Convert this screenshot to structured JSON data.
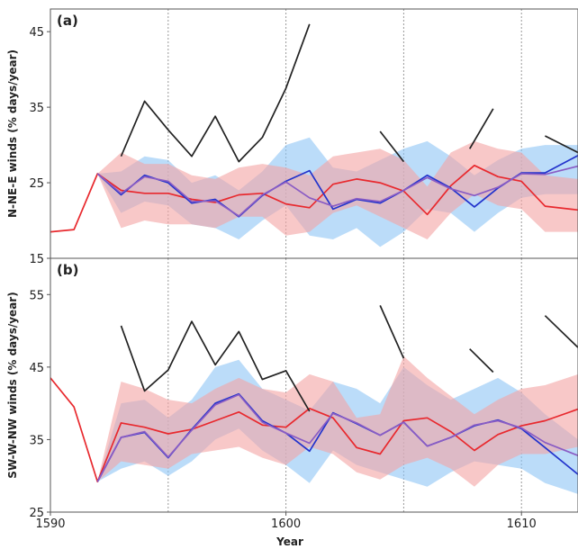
{
  "chart_data": [
    {
      "type": "line",
      "panel_label": "(a)",
      "xlabel": "",
      "ylabel": "N-NE-E winds (% days/year)",
      "xlim": [
        1590,
        1612.4
      ],
      "ylim": [
        15,
        48
      ],
      "yticks": [
        15,
        25,
        35,
        45
      ],
      "grid": "vertical dashed at 1595, 1600, 1605, 1610",
      "series": [
        {
          "color": "#222222",
          "style": "line",
          "segments": [
            [
              [
                1593,
                28.5
              ],
              [
                1594,
                35.8
              ],
              [
                1595,
                32
              ],
              [
                1596,
                28.5
              ],
              [
                1597,
                33.8
              ],
              [
                1598,
                27.8
              ],
              [
                1599,
                31
              ],
              [
                1600,
                37.5
              ],
              [
                1601,
                46
              ]
            ],
            [
              [
                1604,
                31.8
              ],
              [
                1605,
                27.8
              ]
            ],
            [
              [
                1607.8,
                29.5
              ],
              [
                1608.8,
                34.8
              ]
            ],
            [
              [
                1611,
                31.2
              ],
              [
                1612.4,
                29
              ]
            ]
          ]
        },
        {
          "color": "#2233cc",
          "style": "line",
          "x": [
            1592,
            1593,
            1594,
            1595,
            1596,
            1597,
            1598,
            1599,
            1600,
            1601,
            1602,
            1603,
            1604,
            1605,
            1606,
            1607,
            1608,
            1609,
            1610,
            1611,
            1612.4
          ],
          "y": [
            26.2,
            23.4,
            26.0,
            25.0,
            22.3,
            22.8,
            20.5,
            23.3,
            25.2,
            26.6,
            21.5,
            22.8,
            22.3,
            24.0,
            26.0,
            24.3,
            21.8,
            24.3,
            26.3,
            26.3,
            28.6
          ]
        },
        {
          "color": "#e8292e",
          "style": "line",
          "x": [
            1590,
            1591,
            1592,
            1593,
            1594,
            1595,
            1596,
            1597,
            1598,
            1599,
            1600,
            1601,
            1602,
            1603,
            1604,
            1605,
            1606,
            1607,
            1608,
            1609,
            1610,
            1611,
            1612.4
          ],
          "y": [
            18.5,
            18.8,
            26.2,
            24.0,
            23.6,
            23.6,
            22.8,
            22.4,
            23.4,
            23.6,
            22.2,
            21.7,
            24.8,
            25.5,
            25.0,
            23.9,
            20.8,
            24.6,
            27.3,
            25.8,
            25.2,
            21.9,
            21.4
          ]
        },
        {
          "color": "#8a5cc4",
          "style": "line",
          "x": [
            1592,
            1593,
            1594,
            1595,
            1596,
            1597,
            1598,
            1599,
            1600,
            1601,
            1602,
            1603,
            1604,
            1605,
            1606,
            1607,
            1608,
            1609,
            1610,
            1611,
            1612.4
          ],
          "y": [
            26.2,
            23.6,
            25.8,
            25.2,
            22.5,
            22.6,
            20.6,
            23.4,
            25.1,
            23.0,
            21.9,
            22.9,
            22.5,
            24.0,
            25.7,
            24.2,
            23.3,
            24.4,
            26.2,
            26.1,
            27.2
          ]
        },
        {
          "color": "#8ec5f5",
          "style": "band",
          "x": [
            1592,
            1593,
            1594,
            1595,
            1596,
            1597,
            1598,
            1599,
            1600,
            1601,
            1602,
            1603,
            1604,
            1605,
            1606,
            1607,
            1608,
            1609,
            1610,
            1611,
            1612.4
          ],
          "low": [
            26.2,
            21,
            22.5,
            22,
            19.5,
            19,
            17.5,
            20,
            22,
            18,
            17.5,
            19,
            16.5,
            18.5,
            21.5,
            21,
            18.5,
            21,
            23,
            23.5,
            23.5
          ],
          "high": [
            26.2,
            26.5,
            28.5,
            28,
            25,
            26,
            24,
            26.5,
            30,
            31,
            27,
            26.5,
            28,
            29.5,
            30.5,
            28.5,
            26,
            28,
            29.5,
            30,
            30
          ]
        },
        {
          "color": "#f4a4a4",
          "style": "band",
          "x": [
            1590,
            1591,
            1592,
            1593,
            1594,
            1595,
            1596,
            1597,
            1598,
            1599,
            1600,
            1601,
            1602,
            1603,
            1604,
            1605,
            1606,
            1607,
            1608,
            1609,
            1610,
            1611,
            1612.4
          ],
          "low": [
            18.5,
            18.8,
            26.2,
            19,
            20,
            19.5,
            19.5,
            19,
            20.5,
            20.5,
            18,
            18.5,
            21,
            22,
            20.5,
            19,
            17.5,
            21,
            23.5,
            22,
            21.5,
            18.5,
            18.5
          ],
          "high": [
            18.5,
            18.8,
            26.2,
            29,
            27.5,
            27.5,
            26,
            25.5,
            27,
            27.5,
            27,
            26,
            28.5,
            29,
            29.5,
            28,
            24.5,
            29,
            30.5,
            29.5,
            29,
            26,
            25.5
          ]
        }
      ]
    },
    {
      "type": "line",
      "panel_label": "(b)",
      "xlabel": "Year",
      "ylabel": "SW-W-NW winds (% days/year)",
      "xlim": [
        1590,
        1612.4
      ],
      "ylim": [
        25,
        60
      ],
      "yticks": [
        25,
        35,
        45,
        55
      ],
      "xticks": [
        1590,
        1600,
        1610
      ],
      "grid": "vertical dashed at 1595, 1600, 1605, 1610",
      "series": [
        {
          "color": "#222222",
          "style": "line",
          "segments": [
            [
              [
                1593,
                50.7
              ],
              [
                1594,
                41.7
              ],
              [
                1595,
                44.6
              ],
              [
                1596,
                51.3
              ],
              [
                1597,
                45.3
              ],
              [
                1598,
                49.9
              ],
              [
                1599,
                43.3
              ],
              [
                1600,
                44.5
              ],
              [
                1601,
                38.9
              ]
            ],
            [
              [
                1604,
                53.5
              ],
              [
                1605,
                46.2
              ]
            ],
            [
              [
                1607.8,
                47.5
              ],
              [
                1608.8,
                44.3
              ]
            ],
            [
              [
                1611,
                52.1
              ],
              [
                1612.4,
                47.7
              ]
            ]
          ]
        },
        {
          "color": "#2233cc",
          "style": "line",
          "x": [
            1592,
            1593,
            1594,
            1595,
            1596,
            1597,
            1598,
            1599,
            1600,
            1601,
            1602,
            1603,
            1604,
            1605,
            1606,
            1607,
            1608,
            1609,
            1610,
            1611,
            1612.4
          ],
          "y": [
            29.2,
            35.3,
            36.0,
            32.5,
            36.4,
            40.0,
            41.3,
            37.6,
            35.9,
            33.4,
            38.7,
            37.2,
            35.6,
            37.4,
            34.1,
            35.3,
            36.9,
            37.7,
            36.5,
            33.9,
            30.2
          ]
        },
        {
          "color": "#e8292e",
          "style": "line",
          "x": [
            1590,
            1591,
            1592,
            1593,
            1594,
            1595,
            1596,
            1597,
            1598,
            1599,
            1600,
            1601,
            1602,
            1603,
            1604,
            1605,
            1606,
            1607,
            1608,
            1609,
            1610,
            1611,
            1612.4
          ],
          "y": [
            43.5,
            39.5,
            29.2,
            37.3,
            36.7,
            35.8,
            36.4,
            37.6,
            38.8,
            37.0,
            36.7,
            39.3,
            38.0,
            33.9,
            33.0,
            37.6,
            38.0,
            36.1,
            33.5,
            35.7,
            36.9,
            37.6,
            39.2
          ]
        },
        {
          "color": "#8a5cc4",
          "style": "line",
          "x": [
            1592,
            1593,
            1594,
            1595,
            1596,
            1597,
            1598,
            1599,
            1600,
            1601,
            1602,
            1603,
            1604,
            1605,
            1606,
            1607,
            1608,
            1609,
            1610,
            1611,
            1612.4
          ],
          "y": [
            29.2,
            35.3,
            36.1,
            32.6,
            36.3,
            39.8,
            41.2,
            37.4,
            35.9,
            34.5,
            38.6,
            37.3,
            35.6,
            37.4,
            34.1,
            35.3,
            37.0,
            37.6,
            36.6,
            34.6,
            32.8
          ]
        },
        {
          "color": "#8ec5f5",
          "style": "band",
          "x": [
            1592,
            1593,
            1594,
            1595,
            1596,
            1597,
            1598,
            1599,
            1600,
            1601,
            1602,
            1603,
            1604,
            1605,
            1606,
            1607,
            1608,
            1609,
            1610,
            1611,
            1612.4
          ],
          "low": [
            29.2,
            31,
            32,
            30,
            32,
            35,
            36.5,
            33.5,
            31.5,
            29,
            33.5,
            31.5,
            30.5,
            29.5,
            28.5,
            30.5,
            32,
            31.5,
            31,
            29,
            27.5
          ],
          "high": [
            29.2,
            40,
            40.5,
            38,
            40.5,
            45,
            46,
            42,
            40.5,
            39,
            43,
            42,
            40,
            45,
            42.5,
            40.5,
            42,
            43.5,
            41.5,
            38.5,
            35
          ]
        },
        {
          "color": "#f4a4a4",
          "style": "band",
          "x": [
            1590,
            1591,
            1592,
            1593,
            1594,
            1595,
            1596,
            1597,
            1598,
            1599,
            1600,
            1601,
            1602,
            1603,
            1604,
            1605,
            1606,
            1607,
            1608,
            1609,
            1610,
            1611,
            1612.4
          ],
          "low": [
            43.5,
            39.5,
            29.2,
            32,
            31.5,
            31,
            33,
            33.5,
            34,
            32.5,
            31.5,
            34,
            33,
            30.5,
            29.5,
            31.5,
            32.5,
            31,
            28.5,
            31.5,
            33,
            33,
            34
          ],
          "high": [
            43.5,
            39.5,
            29.2,
            43,
            42,
            40.5,
            40,
            42,
            43.5,
            42,
            41.5,
            44,
            43,
            38,
            38.5,
            46.5,
            43.5,
            41,
            38.5,
            40.5,
            42,
            42.5,
            44
          ]
        }
      ]
    }
  ]
}
